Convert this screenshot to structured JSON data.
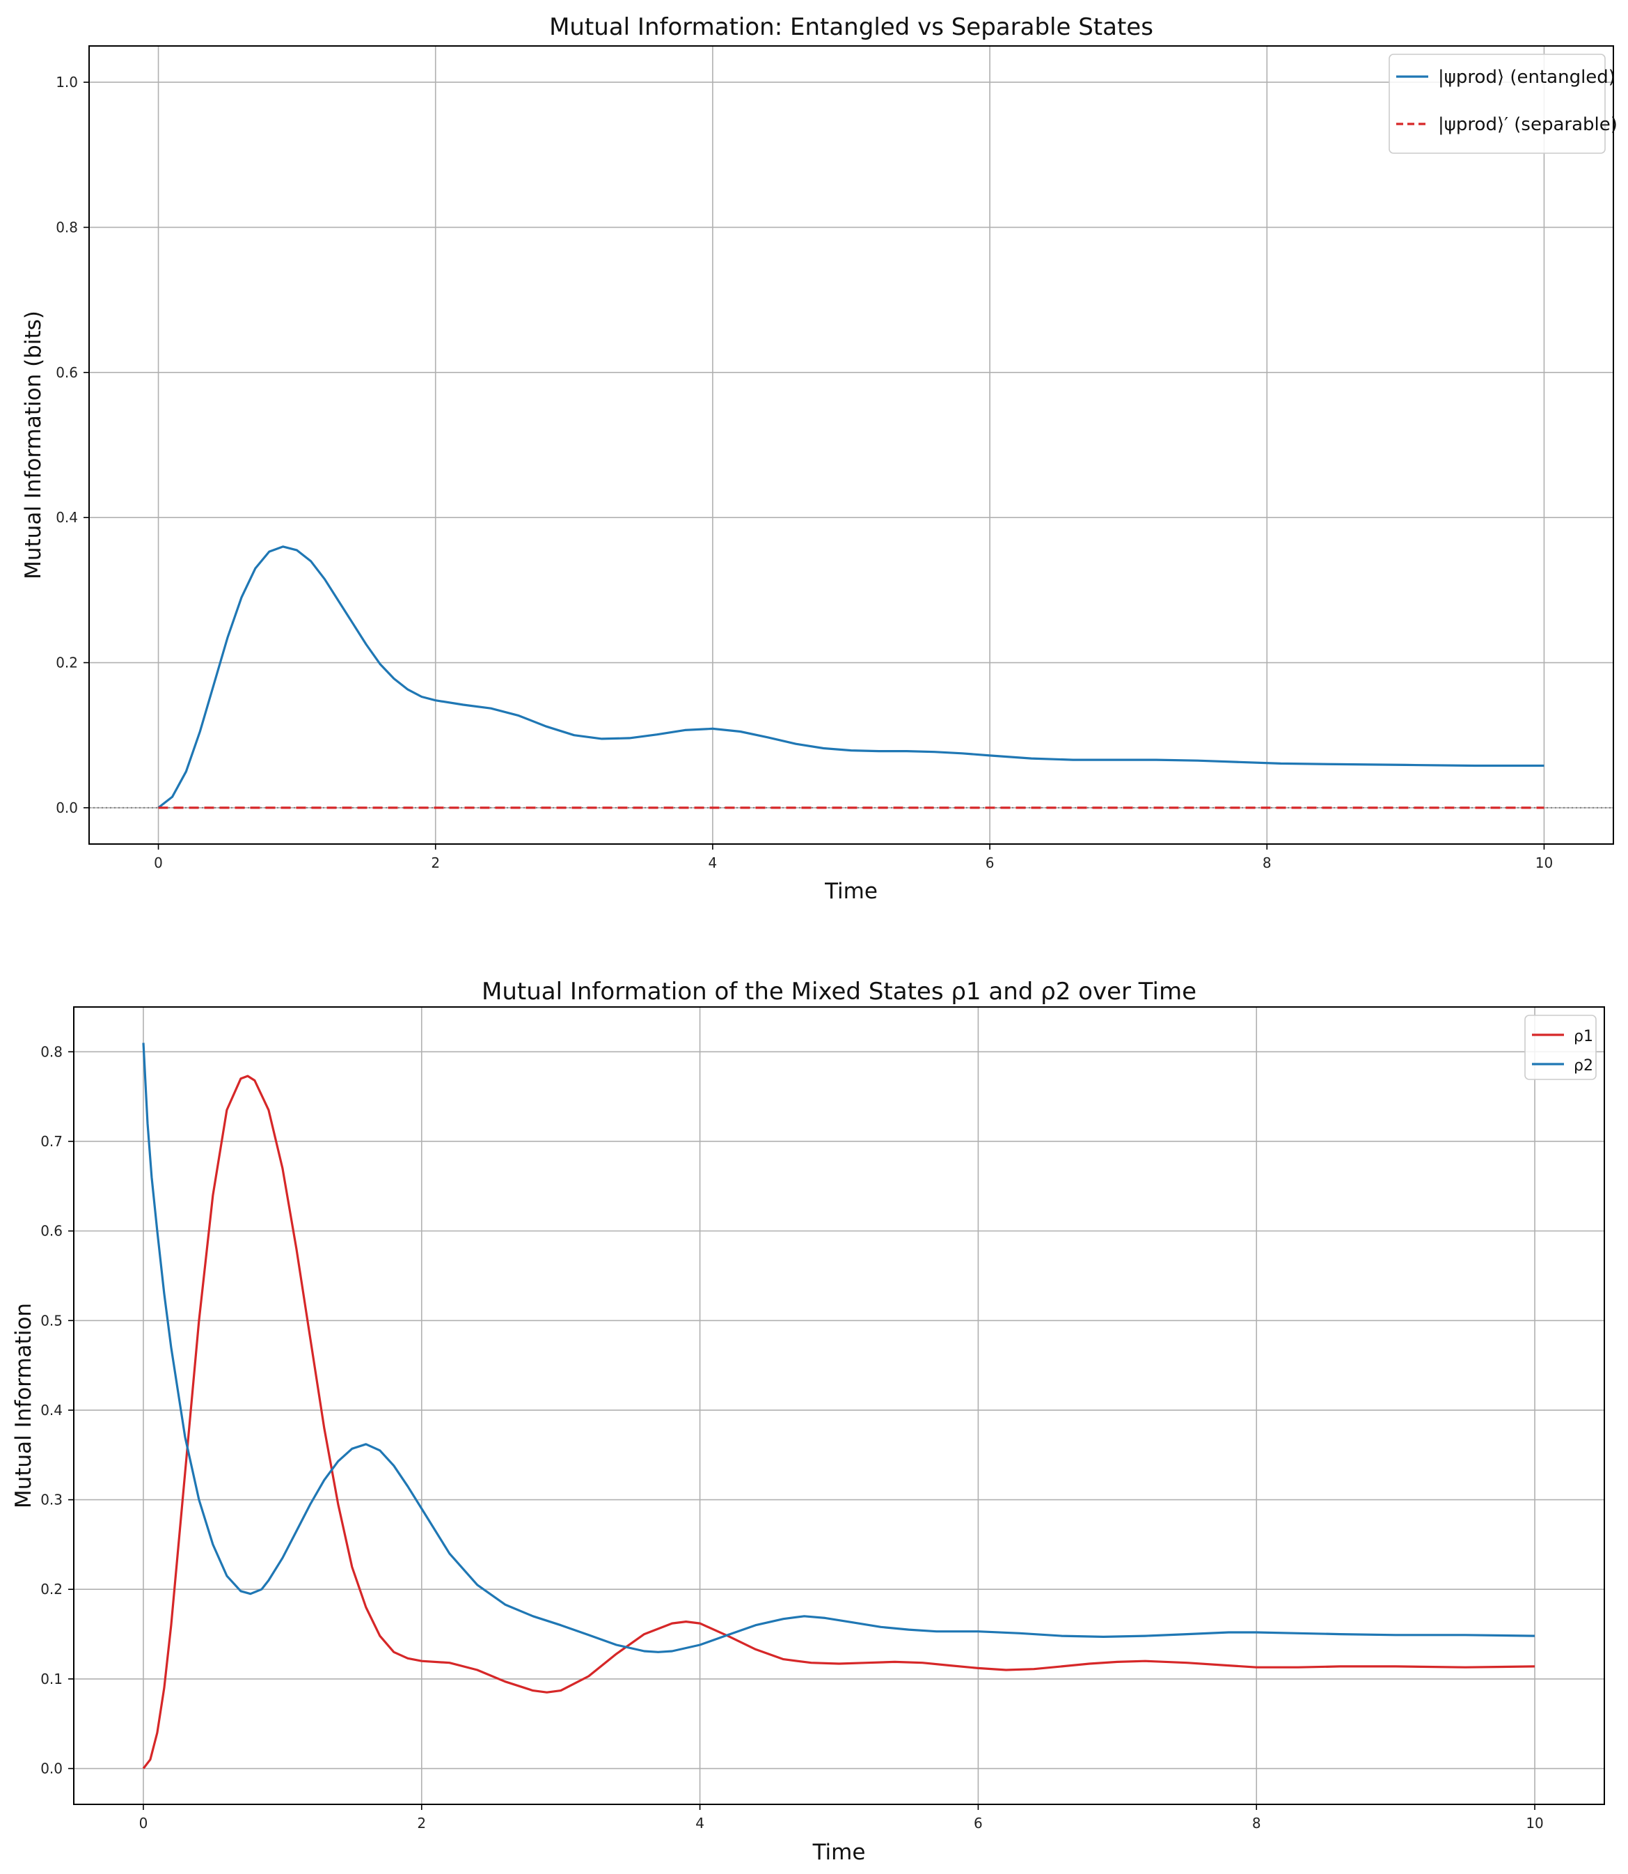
{
  "chart_data": [
    {
      "type": "line",
      "title": "Mutual Information: Entangled vs Separable States",
      "xlabel": "Time",
      "ylabel": "Mutual Information (bits)",
      "xlim": [
        -0.5,
        10.5
      ],
      "ylim": [
        -0.05,
        1.05
      ],
      "xticks": [
        "0",
        "2",
        "4",
        "6",
        "8",
        "10"
      ],
      "yticks": [
        "0.0",
        "0.2",
        "0.4",
        "0.6",
        "0.8",
        "1.0"
      ],
      "grid": true,
      "legend_position": "top-right",
      "reference_line": {
        "y": 0.0,
        "style": "dotted",
        "color": "#808080"
      },
      "series": [
        {
          "name": "|ψprod⟩ (entangled)",
          "color": "#1f77b4",
          "style": "solid",
          "x": [
            0,
            0.1,
            0.2,
            0.3,
            0.4,
            0.5,
            0.6,
            0.7,
            0.8,
            0.9,
            1.0,
            1.1,
            1.2,
            1.3,
            1.4,
            1.5,
            1.6,
            1.7,
            1.8,
            1.9,
            2.0,
            2.2,
            2.4,
            2.6,
            2.8,
            3.0,
            3.2,
            3.4,
            3.6,
            3.8,
            4.0,
            4.2,
            4.4,
            4.6,
            4.8,
            5.0,
            5.2,
            5.4,
            5.6,
            5.8,
            6.0,
            6.3,
            6.6,
            6.9,
            7.2,
            7.5,
            7.8,
            8.1,
            8.5,
            9.0,
            9.5,
            10.0
          ],
          "y": [
            0.0,
            0.015,
            0.05,
            0.105,
            0.17,
            0.235,
            0.29,
            0.33,
            0.353,
            0.36,
            0.355,
            0.34,
            0.315,
            0.285,
            0.255,
            0.225,
            0.198,
            0.178,
            0.163,
            0.153,
            0.148,
            0.142,
            0.137,
            0.127,
            0.112,
            0.1,
            0.095,
            0.096,
            0.101,
            0.107,
            0.109,
            0.105,
            0.097,
            0.088,
            0.082,
            0.079,
            0.078,
            0.078,
            0.077,
            0.075,
            0.072,
            0.068,
            0.066,
            0.066,
            0.066,
            0.065,
            0.063,
            0.061,
            0.06,
            0.059,
            0.058,
            0.058
          ]
        },
        {
          "name": "|ψprod⟩′ (separable)",
          "color": "#d62728",
          "style": "dashed",
          "x": [
            0,
            10
          ],
          "y": [
            0.0,
            0.0
          ]
        }
      ]
    },
    {
      "type": "line",
      "title": "Mutual Information of the Mixed States ρ1 and ρ2 over Time",
      "xlabel": "Time",
      "ylabel": "Mutual Information",
      "xlim": [
        -0.5,
        10.5
      ],
      "ylim": [
        -0.04,
        0.85
      ],
      "xticks": [
        "0",
        "2",
        "4",
        "6",
        "8",
        "10"
      ],
      "yticks": [
        "0.0",
        "0.1",
        "0.2",
        "0.3",
        "0.4",
        "0.5",
        "0.6",
        "0.7",
        "0.8"
      ],
      "grid": true,
      "legend_position": "top-right",
      "series": [
        {
          "name": "ρ1",
          "color": "#d62728",
          "style": "solid",
          "x": [
            0,
            0.05,
            0.1,
            0.15,
            0.2,
            0.3,
            0.4,
            0.5,
            0.6,
            0.7,
            0.75,
            0.8,
            0.9,
            1.0,
            1.1,
            1.2,
            1.3,
            1.4,
            1.5,
            1.6,
            1.7,
            1.8,
            1.9,
            2.0,
            2.2,
            2.4,
            2.6,
            2.8,
            2.9,
            3.0,
            3.2,
            3.4,
            3.6,
            3.8,
            3.9,
            4.0,
            4.2,
            4.4,
            4.6,
            4.8,
            5.0,
            5.2,
            5.4,
            5.6,
            5.8,
            6.0,
            6.2,
            6.4,
            6.6,
            6.8,
            7.0,
            7.2,
            7.5,
            7.8,
            8.0,
            8.3,
            8.6,
            9.0,
            9.5,
            10.0
          ],
          "y": [
            0.0,
            0.01,
            0.04,
            0.09,
            0.16,
            0.33,
            0.5,
            0.64,
            0.735,
            0.77,
            0.773,
            0.768,
            0.735,
            0.67,
            0.58,
            0.48,
            0.38,
            0.295,
            0.225,
            0.18,
            0.148,
            0.13,
            0.123,
            0.12,
            0.118,
            0.11,
            0.097,
            0.087,
            0.085,
            0.087,
            0.103,
            0.128,
            0.15,
            0.162,
            0.164,
            0.162,
            0.148,
            0.133,
            0.122,
            0.118,
            0.117,
            0.118,
            0.119,
            0.118,
            0.115,
            0.112,
            0.11,
            0.111,
            0.114,
            0.117,
            0.119,
            0.12,
            0.118,
            0.115,
            0.113,
            0.113,
            0.114,
            0.114,
            0.113,
            0.114
          ]
        },
        {
          "name": "ρ2",
          "color": "#1f77b4",
          "style": "solid",
          "x": [
            0,
            0.03,
            0.06,
            0.1,
            0.15,
            0.2,
            0.25,
            0.3,
            0.4,
            0.5,
            0.6,
            0.7,
            0.77,
            0.85,
            0.9,
            1.0,
            1.1,
            1.2,
            1.3,
            1.4,
            1.5,
            1.6,
            1.7,
            1.8,
            1.9,
            2.0,
            2.2,
            2.4,
            2.6,
            2.8,
            3.0,
            3.2,
            3.4,
            3.6,
            3.7,
            3.8,
            4.0,
            4.2,
            4.4,
            4.6,
            4.75,
            4.9,
            5.1,
            5.3,
            5.5,
            5.7,
            6.0,
            6.3,
            6.6,
            6.9,
            7.2,
            7.5,
            7.8,
            8.0,
            8.3,
            8.6,
            9.0,
            9.5,
            10.0
          ],
          "y": [
            0.81,
            0.72,
            0.66,
            0.6,
            0.53,
            0.47,
            0.42,
            0.37,
            0.3,
            0.25,
            0.215,
            0.198,
            0.195,
            0.2,
            0.21,
            0.235,
            0.265,
            0.295,
            0.322,
            0.343,
            0.357,
            0.362,
            0.355,
            0.338,
            0.315,
            0.29,
            0.24,
            0.205,
            0.183,
            0.17,
            0.16,
            0.149,
            0.138,
            0.131,
            0.13,
            0.131,
            0.138,
            0.149,
            0.16,
            0.167,
            0.17,
            0.168,
            0.163,
            0.158,
            0.155,
            0.153,
            0.153,
            0.151,
            0.148,
            0.147,
            0.148,
            0.15,
            0.152,
            0.152,
            0.151,
            0.15,
            0.149,
            0.149,
            0.148
          ]
        }
      ]
    }
  ]
}
